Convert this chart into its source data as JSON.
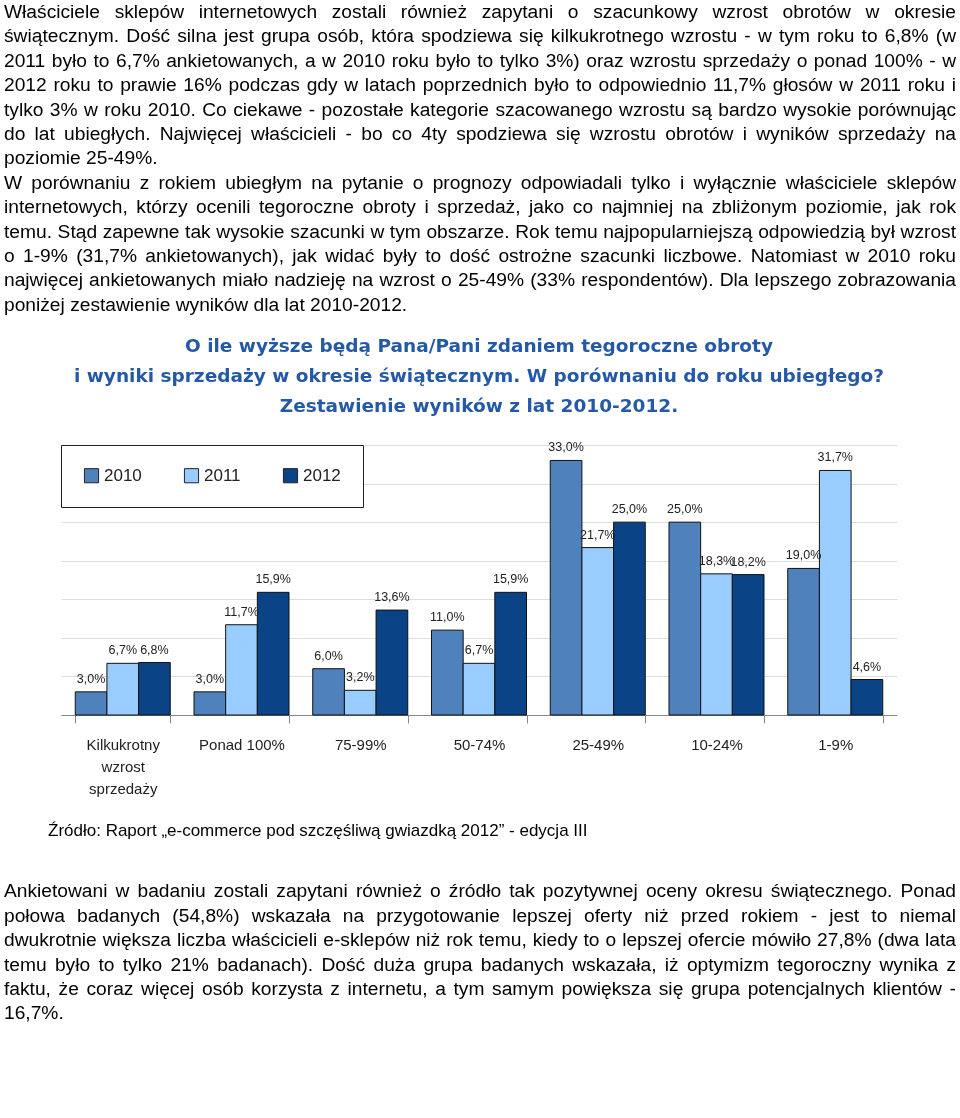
{
  "chart_data": {
    "type": "bar",
    "title": "O ile wyższe będą Pana/Pani zdaniem tegoroczne obroty\ni wyniki sprzedaży w okresie świątecznym. W porównaniu do roku ubiegłego?\nZestawienie wyników z lat 2010-2012.",
    "categories": [
      "Kilkukrotny wzrost sprzedaży",
      "Ponad 100%",
      "75-99%",
      "50-74%",
      "25-49%",
      "10-24%",
      "1-9%"
    ],
    "series": [
      {
        "name": "2010",
        "color": "#4f81bd",
        "values": [
          3.0,
          3.0,
          6.0,
          11.0,
          33.0,
          25.0,
          19.0
        ],
        "value_labels": [
          "3,0%",
          "3,0%",
          "6,0%",
          "11,0%",
          "33,0%",
          "25,0%",
          "19,0%"
        ]
      },
      {
        "name": "2011",
        "color": "#99ccff",
        "values": [
          6.7,
          11.7,
          3.2,
          6.7,
          21.7,
          18.3,
          31.7
        ],
        "value_labels": [
          "6,7%",
          "11,7%",
          "3,2%",
          "6,7%",
          "21,7%",
          "18,3%",
          "31,7%"
        ]
      },
      {
        "name": "2012",
        "color": "#0a4487",
        "values": [
          6.8,
          15.9,
          13.6,
          15.9,
          25.0,
          18.2,
          4.6
        ],
        "value_labels": [
          "6,8%",
          "15,9%",
          "13,6%",
          "15,9%",
          "25,0%",
          "18,2%",
          "4,6%"
        ]
      }
    ],
    "ylim": [
      0,
      35
    ],
    "tick_labels": "x",
    "grid": "y",
    "legend": "top left",
    "annotations": [
      "Właściciele sklepów internetowych zostali również zapytani o szacunkowy wzrost obrotów w okresie świątecznym. Dość silna jest grupa osób, która spodziewa się kilkukrotnego wzrostu - w tym roku to 6,8% (w 2011 było to 6,7% ankietowanych, a w 2010 roku było to tylko 3%) oraz wzrostu sprzedaży o ponad 100% - w 2012 roku to prawie 16% podczas gdy w latach poprzednich było to odpowiednio 11,7% głosów w 2011 roku i tylko 3% w roku 2010. Co ciekawe - pozostałe kategorie szacowanego wzrostu są bardzo wysokie porównując do lat ubiegłych. Najwięcej właścicieli - bo co 4ty spodziewa się wzrostu obrotów i wyników sprzedaży na poziomie 25-49%.",
      "W porównaniu z rokiem ubiegłym na pytanie o prognozy odpowiadali tylko i wyłącznie właściciele sklepów internetowych, którzy ocenili tegoroczne obroty i sprzedaż, jako co najmniej na zbliżonym poziomie, jak rok temu. Stąd zapewne tak wysokie szacunki w tym obszarze. Rok temu najpopularniejszą odpowiedzią był wzrost o 1-9% (31,7% ankietowanych), jak widać były to dość ostrożne szacunki liczbowe. Natomiast w 2010 roku najwięcej ankietowanych miało nadzieję na wzrost o 25-49% (33% respondentów). Dla lepszego zobrazowania poniżej zestawienie wyników dla lat 2010-2012.",
      "Źródło: Raport „e-commerce pod szczęśliwą gwiazdką 2012” - edycja III",
      "Ankietowani w badaniu zostali zapytani również o źródło tak pozytywnej oceny okresu świątecznego. Ponad połowa badanych (54,8%) wskazała na przygotowanie lepszej oferty niż przed rokiem - jest to niemal dwukrotnie większa liczba właścicieli e-sklepów niż rok temu, kiedy to o lepszej ofercie mówiło 27,8% (dwa lata temu było to tylko 21% badanach). Dość duża grupa badanych wskazała, iż optymizm tegoroczny wynika z faktu, że coraz więcej osób korzysta z internetu, a tym samym powiększa się grupa potencjalnych klientów - 16,7%."
    ]
  }
}
